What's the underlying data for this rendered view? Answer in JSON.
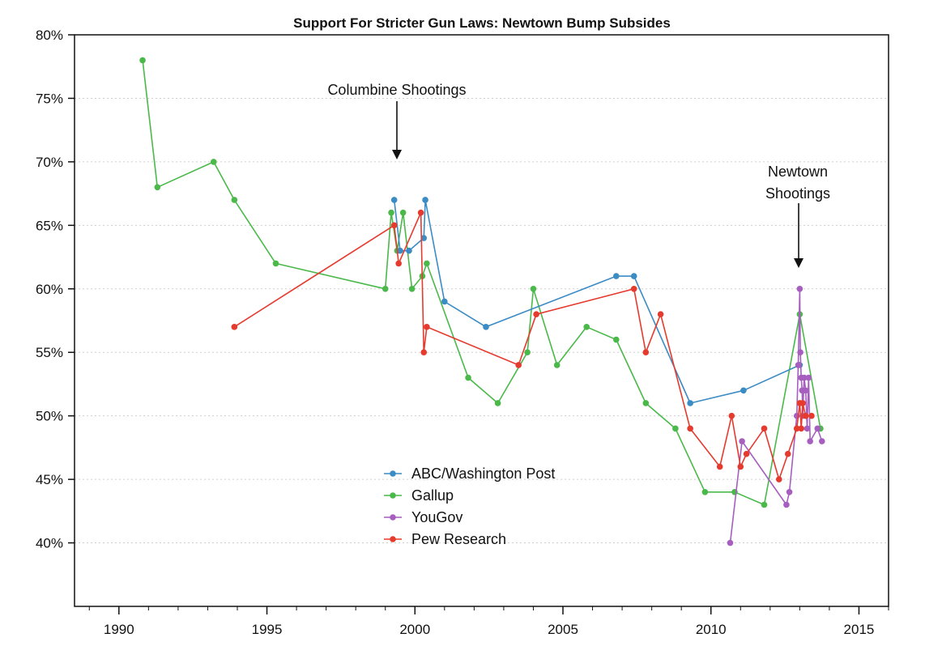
{
  "chart_data": {
    "type": "line",
    "title": "Support For Stricter Gun Laws: Newtown Bump Subsides",
    "xlabel": "",
    "ylabel": "",
    "xlim": [
      1988.5,
      2016.0
    ],
    "ylim": [
      35,
      80
    ],
    "x_ticks": [
      1990,
      1995,
      2000,
      2005,
      2010,
      2015
    ],
    "y_ticks": [
      40,
      45,
      50,
      55,
      60,
      65,
      70,
      75,
      80
    ],
    "y_tick_suffix": "%",
    "grid": "horizontal dotted",
    "legend_position": "bottom-center",
    "annotations": [
      {
        "lines": [
          "Columbine Shootings"
        ],
        "x": 1999.3,
        "y": 69.5
      },
      {
        "lines": [
          "Newtown",
          "Shootings"
        ],
        "x": 2013.0,
        "y": 62.5
      }
    ],
    "series": [
      {
        "name": "ABC/Washington Post",
        "color": "#3b8bc4",
        "x": [
          1999.3,
          1999.5,
          1999.8,
          2000.3,
          2000.35,
          2001.0,
          2002.4,
          2006.8,
          2007.4,
          2009.3,
          2011.1,
          2013.0
        ],
        "y": [
          67,
          63,
          63,
          64,
          67,
          59,
          57,
          61,
          61,
          51,
          52,
          54
        ]
      },
      {
        "name": "Gallup",
        "color": "#4ab94a",
        "x": [
          1990.8,
          1991.3,
          1993.2,
          1993.9,
          1995.3,
          1999.0,
          1999.2,
          1999.4,
          1999.6,
          1999.9,
          2000.25,
          2000.4,
          2001.8,
          2002.8,
          2003.8,
          2004.0,
          2004.8,
          2005.8,
          2006.8,
          2007.8,
          2008.8,
          2009.8,
          2010.8,
          2011.8,
          2013.0,
          2013.7
        ],
        "y": [
          78,
          68,
          70,
          67,
          62,
          60,
          66,
          63,
          66,
          60,
          61,
          62,
          53,
          51,
          55,
          60,
          54,
          57,
          56,
          51,
          49,
          44,
          44,
          43,
          58,
          49
        ]
      },
      {
        "name": "YouGov",
        "color": "#a65fbf",
        "x": [
          2010.65,
          2011.05,
          2012.55,
          2012.65,
          2012.9,
          2012.95,
          2013.0,
          2013.02,
          2013.05,
          2013.08,
          2013.1,
          2013.15,
          2013.2,
          2013.25,
          2013.3,
          2013.35,
          2013.6,
          2013.75
        ],
        "y": [
          40,
          48,
          43,
          44,
          50,
          54,
          60,
          55,
          53,
          52,
          50,
          53,
          52,
          49,
          53,
          48,
          49,
          48
        ]
      },
      {
        "name": "Pew Research",
        "color": "#e53b2f",
        "x": [
          1993.9,
          1999.3,
          1999.45,
          2000.2,
          2000.3,
          2000.4,
          2003.5,
          2004.1,
          2007.4,
          2007.8,
          2008.3,
          2009.3,
          2010.3,
          2010.7,
          2011.0,
          2011.2,
          2011.8,
          2012.3,
          2012.6,
          2012.9,
          2013.0,
          2013.05,
          2013.1,
          2013.2,
          2013.4
        ],
        "y": [
          57,
          65,
          62,
          66,
          55,
          57,
          54,
          58,
          60,
          55,
          58,
          49,
          46,
          50,
          46,
          47,
          49,
          45,
          47,
          49,
          51,
          49,
          51,
          50,
          50
        ]
      }
    ]
  }
}
